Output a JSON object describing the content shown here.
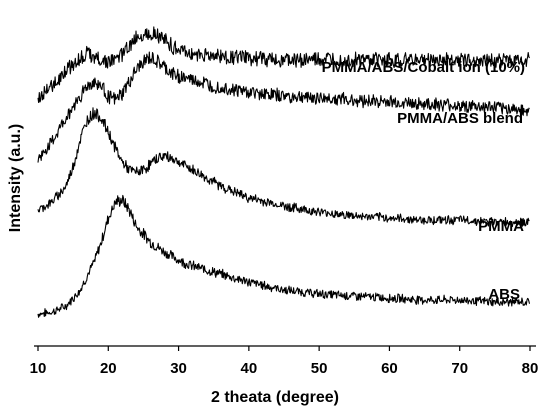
{
  "chart_data": {
    "type": "line",
    "xlabel": "2 theata (degree)",
    "ylabel": "Intensity (a.u.)",
    "xlim": [
      10,
      80
    ],
    "x_ticks": [
      "10",
      "20",
      "30",
      "40",
      "50",
      "60",
      "70",
      "80"
    ],
    "y_ticks_shown": false,
    "grid": false,
    "legend": "none",
    "line_color": "#000000",
    "series": [
      {
        "name": "ABS",
        "x": [
          10,
          12,
          14,
          16,
          18,
          19,
          20,
          21,
          22,
          23,
          24,
          26,
          28,
          30,
          32,
          35,
          40,
          45,
          50,
          55,
          60,
          65,
          70,
          75,
          80
        ],
        "y": [
          0.08,
          0.09,
          0.12,
          0.2,
          0.34,
          0.44,
          0.56,
          0.64,
          0.65,
          0.6,
          0.52,
          0.44,
          0.39,
          0.35,
          0.32,
          0.29,
          0.24,
          0.2,
          0.18,
          0.17,
          0.16,
          0.15,
          0.15,
          0.14,
          0.14
        ]
      },
      {
        "name": "PMMA",
        "x": [
          10,
          12,
          14,
          15,
          16,
          17,
          18,
          19,
          20,
          21,
          22,
          23,
          24,
          25,
          26,
          27,
          28,
          29,
          30,
          32,
          34,
          36,
          38,
          40,
          45,
          50,
          55,
          60,
          65,
          70,
          75,
          80
        ],
        "y": [
          0.6,
          0.64,
          0.72,
          0.82,
          0.95,
          1.05,
          1.09,
          1.06,
          0.99,
          0.91,
          0.84,
          0.8,
          0.79,
          0.8,
          0.83,
          0.86,
          0.87,
          0.86,
          0.84,
          0.8,
          0.76,
          0.72,
          0.69,
          0.66,
          0.62,
          0.59,
          0.57,
          0.56,
          0.55,
          0.55,
          0.54,
          0.54
        ]
      },
      {
        "name": "PMMA/ABS blend",
        "x": [
          10,
          12,
          14,
          16,
          17,
          18,
          19,
          20,
          21,
          22,
          23,
          24,
          25,
          26,
          27,
          28,
          29,
          30,
          32,
          35,
          40,
          45,
          50,
          55,
          60,
          65,
          70,
          75,
          80
        ],
        "y": [
          0.85,
          0.94,
          1.06,
          1.17,
          1.22,
          1.24,
          1.22,
          1.17,
          1.15,
          1.18,
          1.24,
          1.3,
          1.34,
          1.36,
          1.34,
          1.31,
          1.28,
          1.27,
          1.25,
          1.22,
          1.19,
          1.17,
          1.16,
          1.15,
          1.14,
          1.13,
          1.12,
          1.11,
          1.1
        ]
      },
      {
        "name": "PMMA/ABS/Cobalt ion (10%)",
        "x": [
          10,
          12,
          14,
          16,
          17,
          18,
          19,
          20,
          21,
          22,
          23,
          24,
          25,
          26,
          27,
          28,
          29,
          30,
          32,
          35,
          40,
          45,
          50,
          55,
          60,
          65,
          70,
          75,
          80
        ],
        "y": [
          1.15,
          1.22,
          1.3,
          1.36,
          1.38,
          1.37,
          1.35,
          1.34,
          1.35,
          1.38,
          1.42,
          1.46,
          1.48,
          1.49,
          1.48,
          1.45,
          1.42,
          1.4,
          1.38,
          1.37,
          1.36,
          1.35,
          1.35,
          1.35,
          1.35,
          1.35,
          1.35,
          1.35,
          1.35
        ]
      }
    ]
  }
}
